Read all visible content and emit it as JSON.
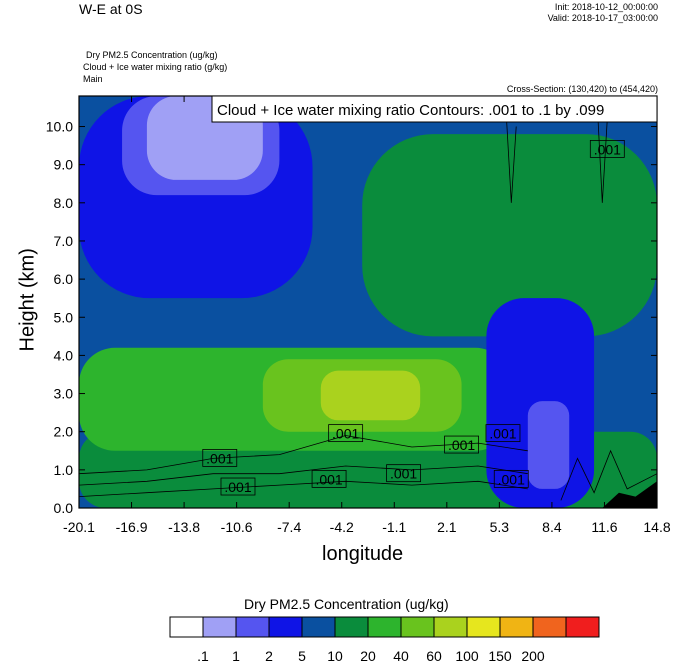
{
  "header": {
    "title_left": "W-E at 0S",
    "init": "Init: 2018-10-12_00:00:00",
    "valid": "Valid: 2018-10-17_03:00:00",
    "desc_line1": "Dry PM2.5 Concentration   (ug/kg)",
    "desc_line2": "Cloud + Ice water mixing ratio   (g/kg)",
    "desc_line3": "Main",
    "cross_section": "Cross-Section: (130,420) to (454,420)"
  },
  "chart_data": {
    "type": "heatmap",
    "title": "W-E at 0S",
    "xlabel": "longitude",
    "ylabel": "Height (km)",
    "xlim": [
      -20.1,
      14.8
    ],
    "ylim": [
      0.0,
      10.8
    ],
    "x_ticks": [
      "-20.1",
      "-16.9",
      "-13.8",
      "-10.6",
      "-7.4",
      "-4.2",
      "-1.1",
      "2.1",
      "5.3",
      "8.4",
      "11.6",
      "14.8"
    ],
    "y_ticks": [
      "0.0",
      "1.0",
      "2.0",
      "3.0",
      "4.0",
      "5.0",
      "6.0",
      "7.0",
      "8.0",
      "9.0",
      "10.0"
    ],
    "contour_title": "Cloud + Ice water mixing ratio Contours: .001 to .1 by .099",
    "contour_labels": [
      ".001",
      ".001",
      ".001",
      ".001",
      ".001",
      ".001",
      ".001",
      ".001",
      ".001"
    ],
    "colorbar": {
      "title": "Dry PM2.5 Concentration  (ug/kg)",
      "labels": [
        ".1",
        "1",
        "2",
        "5",
        "10",
        "20",
        "40",
        "60",
        "100",
        "150",
        "200"
      ],
      "colors": [
        "#ffffff",
        "#a0a0f5",
        "#5555f0",
        "#0f14e6",
        "#0a50a0",
        "#0a8c3c",
        "#2db42d",
        "#69c31e",
        "#aad21e",
        "#e6e61e",
        "#f0b414",
        "#f0641e",
        "#f01e1e"
      ]
    },
    "regions": [
      {
        "level": "10",
        "color": "#0a50a0",
        "x": [
          -20.1,
          14.8
        ],
        "y": [
          0.0,
          10.8
        ]
      },
      {
        "level": "5",
        "color": "#0f14e6",
        "x": [
          -20.1,
          -6.0
        ],
        "y": [
          5.5,
          10.8
        ]
      },
      {
        "level": "2",
        "color": "#5555f0",
        "x": [
          -17.5,
          -8.0
        ],
        "y": [
          8.2,
          10.8
        ]
      },
      {
        "level": "1",
        "color": "#a0a0f5",
        "x": [
          -16.0,
          -9.0
        ],
        "y": [
          8.6,
          10.8
        ]
      },
      {
        "level": "20",
        "color": "#0a8c3c",
        "x": [
          -3.0,
          14.8
        ],
        "y": [
          4.5,
          9.8
        ]
      },
      {
        "level": "20",
        "color": "#0a8c3c",
        "x": [
          -20.1,
          14.8
        ],
        "y": [
          0.0,
          2.0
        ]
      },
      {
        "level": "40",
        "color": "#2db42d",
        "x": [
          -20.1,
          6.0
        ],
        "y": [
          1.5,
          4.2
        ]
      },
      {
        "level": "60",
        "color": "#69c31e",
        "x": [
          -9.0,
          3.0
        ],
        "y": [
          2.0,
          3.9
        ]
      },
      {
        "level": "100",
        "color": "#aad21e",
        "x": [
          -5.5,
          0.5
        ],
        "y": [
          2.3,
          3.6
        ]
      },
      {
        "level": "5",
        "color": "#0f14e6",
        "x": [
          4.5,
          11.0
        ],
        "y": [
          0.0,
          5.5
        ]
      },
      {
        "level": "2",
        "color": "#5555f0",
        "x": [
          7.0,
          9.5
        ],
        "y": [
          0.5,
          2.8
        ]
      }
    ]
  }
}
